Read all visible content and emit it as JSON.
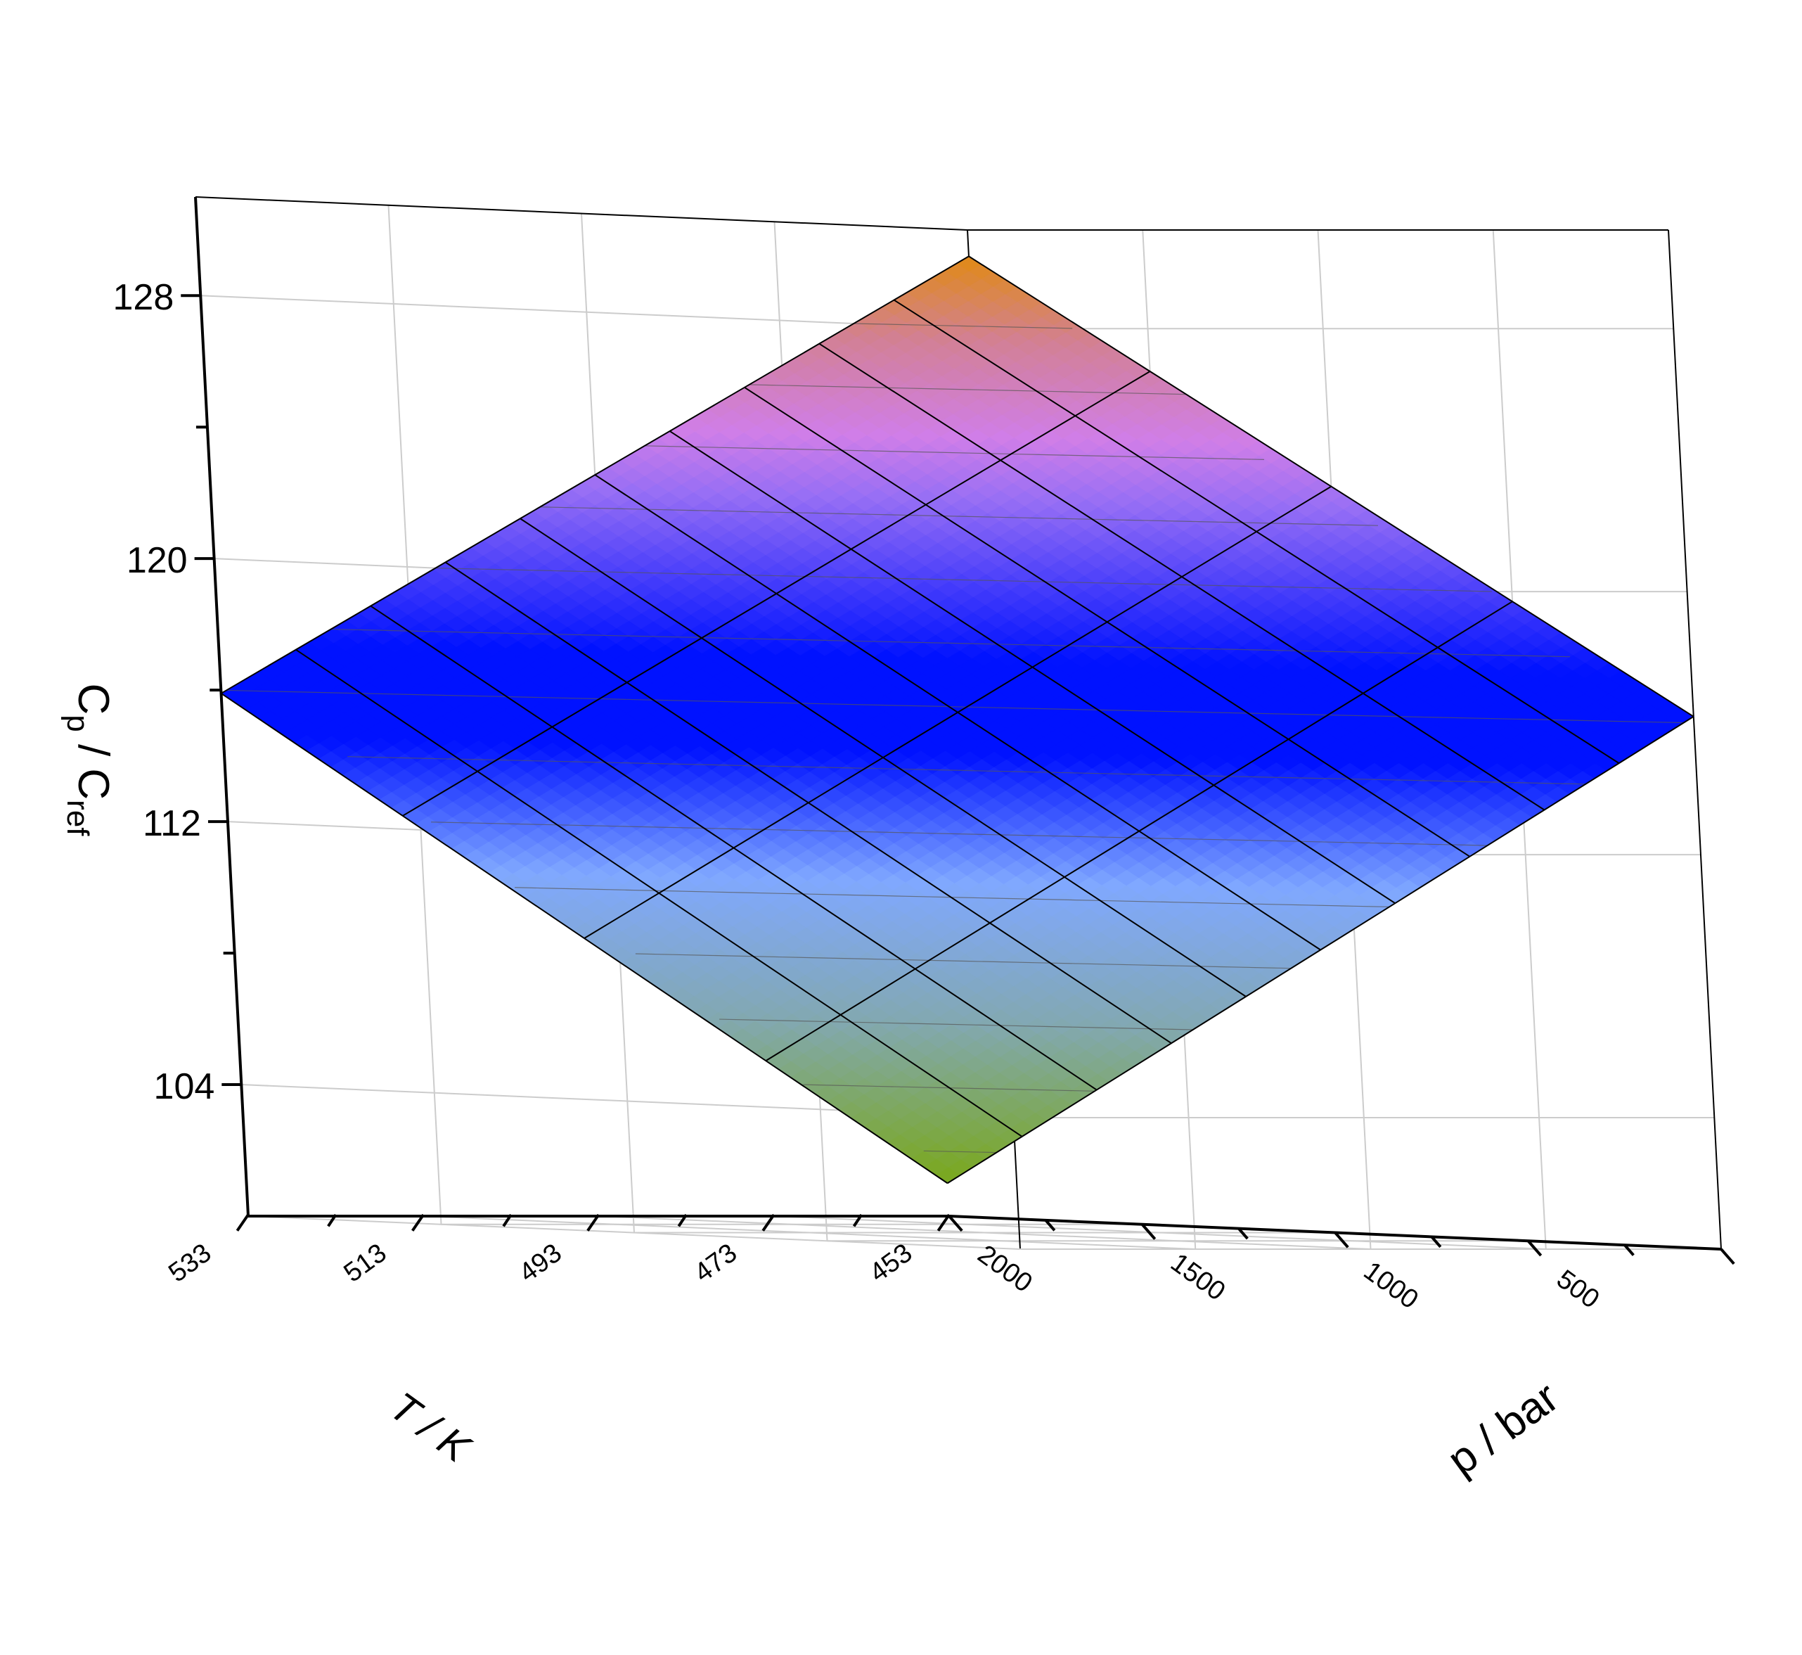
{
  "chart_data": {
    "type": "surface3d",
    "title": "",
    "x_axis": {
      "label": "T / K",
      "range": [
        453,
        533
      ],
      "ticks": [
        "453",
        "473",
        "493",
        "513",
        "533"
      ]
    },
    "y_axis": {
      "label": "p / bar",
      "range": [
        0,
        2000
      ],
      "ticks": [
        "500",
        "1000",
        "1500",
        "2000"
      ]
    },
    "z_axis": {
      "label_main": "C",
      "label_sub1": "p",
      "label_sep": " / C",
      "label_sub2": "ref",
      "range": [
        100,
        131
      ],
      "ticks": [
        "104",
        "112",
        "120",
        "128"
      ]
    },
    "surface": {
      "T": [
        453,
        473,
        493,
        513,
        533
      ],
      "p": [
        0,
        200,
        400,
        600,
        800,
        1000,
        1200,
        1400,
        1600,
        1800,
        2000
      ],
      "corners": {
        "T453_p0": 116.2,
        "T453_p2000": 101.0,
        "T533_p0": 130.2,
        "T533_p2000": 115.9
      }
    },
    "colors": {
      "low": "#7aa81a",
      "lower_mid": "#80a8e0",
      "mid": "#0012ff",
      "upper_mid": "#d07ee8",
      "high": "#e08a14",
      "grid": "#cccccc",
      "mesh": "#000000"
    }
  }
}
